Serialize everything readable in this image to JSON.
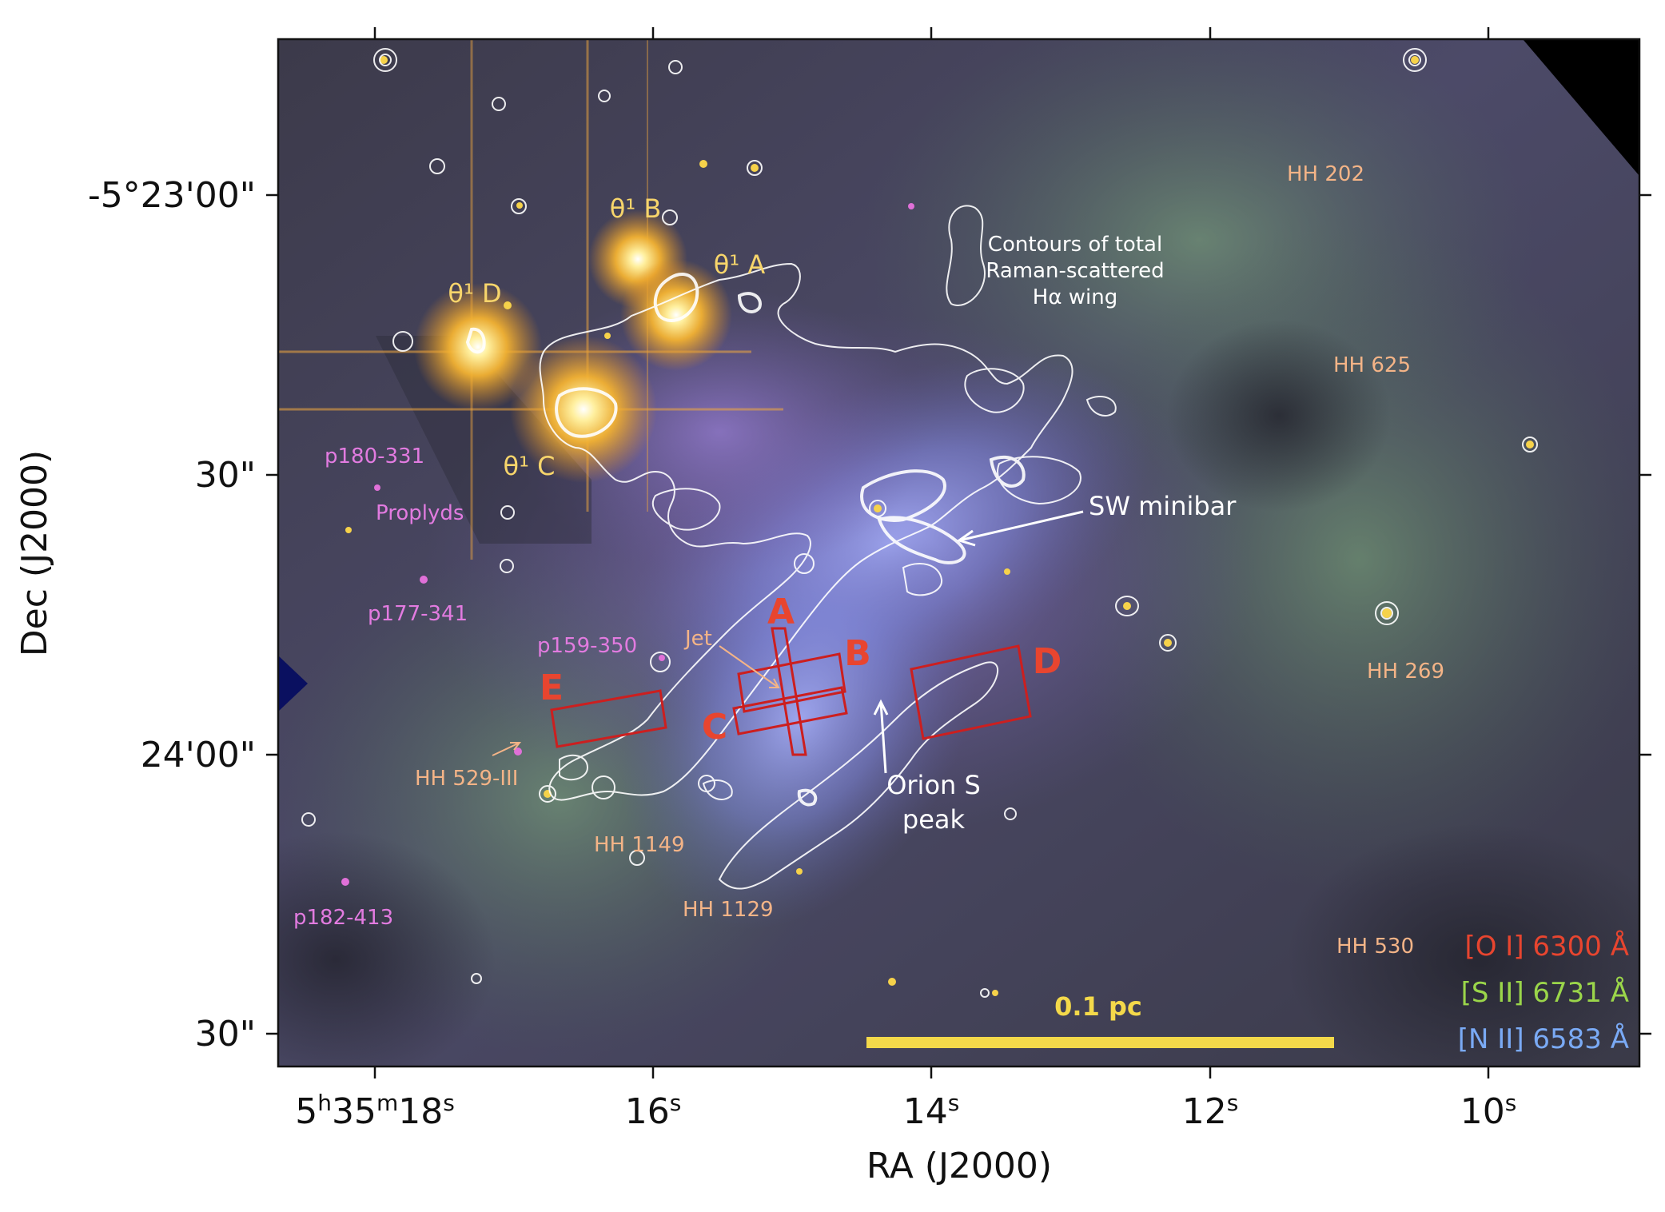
{
  "axes": {
    "xlabel": "RA (J2000)",
    "ylabel": "Dec (J2000)",
    "x_ticks": [
      {
        "pre": "5",
        "sup1": "h",
        "mid": "35",
        "sup2": "m",
        "main": "18",
        "sup3": "s"
      },
      {
        "main": "16",
        "sup3": "s"
      },
      {
        "main": "14",
        "sup3": "s"
      },
      {
        "main": "12",
        "sup3": "s"
      },
      {
        "main": "10",
        "sup3": "s"
      }
    ],
    "y_ticks": [
      "-5°23'00\"",
      "30\"",
      "24'00\"",
      "30\""
    ]
  },
  "stars": {
    "theta1_b": "θ¹ B",
    "theta1_a": "θ¹ A",
    "theta1_d": "θ¹ D",
    "theta1_c": "θ¹ C"
  },
  "annotations": {
    "contours_line1": "Contours of total",
    "contours_line2": "Raman-scattered",
    "contours_line3": "Hα wing",
    "sw_minibar": "SW minibar",
    "orion_s_line1": "Orion S",
    "orion_s_line2": "peak",
    "jet": "Jet"
  },
  "hh_objects": {
    "hh202": "HH 202",
    "hh625": "HH 625",
    "hh269": "HH 269",
    "hh530": "HH 530",
    "hh529": "HH 529-III",
    "hh1149": "HH 1149",
    "hh1129": "HH 1129"
  },
  "proplyds": {
    "p180": "p180-331",
    "proplyds": "Proplyds",
    "p177": "p177-341",
    "p159": "p159-350",
    "p182": "p182-413"
  },
  "boxes": [
    "A",
    "B",
    "C",
    "D",
    "E"
  ],
  "scale_bar": "0.1 pc",
  "legend": {
    "oi": "[O I] 6300 Å",
    "sii": "[S II] 6731 Å",
    "nii": "[N II] 6583 Å"
  },
  "colors": {
    "oi": "#e8452f",
    "sii": "#9bd64a",
    "nii": "#7aaaf5",
    "box": "#cc1f1f",
    "hh_label": "#f4b487",
    "proplyd_label": "#e27be0",
    "star_label": "#f7d56b",
    "scale_bar": "#f4d94a"
  }
}
